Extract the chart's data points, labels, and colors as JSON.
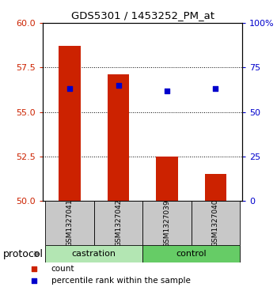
{
  "title": "GDS5301 / 1453252_PM_at",
  "samples": [
    "GSM1327041",
    "GSM1327042",
    "GSM1327039",
    "GSM1327040"
  ],
  "bar_values": [
    58.7,
    57.1,
    52.5,
    51.5
  ],
  "bar_base": 50.0,
  "percentile_values": [
    56.3,
    56.5,
    56.2,
    56.3
  ],
  "protocol_groups": [
    {
      "label": "castration",
      "indices": [
        0,
        1
      ],
      "color": "#b3e6b3"
    },
    {
      "label": "control",
      "indices": [
        2,
        3
      ],
      "color": "#66cc66"
    }
  ],
  "left_ylim": [
    50,
    60
  ],
  "left_yticks": [
    50,
    52.5,
    55,
    57.5,
    60
  ],
  "right_ylim": [
    0,
    100
  ],
  "right_yticks": [
    0,
    25,
    50,
    75,
    100
  ],
  "right_yticklabels": [
    "0",
    "25",
    "50",
    "75",
    "100%"
  ],
  "bar_color": "#cc2200",
  "marker_color": "#0000cc",
  "bar_width": 0.45,
  "legend_items": [
    {
      "label": "count",
      "color": "#cc2200"
    },
    {
      "label": "percentile rank within the sample",
      "color": "#0000cc"
    }
  ],
  "protocol_label": "protocol",
  "sample_box_color": "#c8c8c8",
  "figure_bg": "#ffffff"
}
